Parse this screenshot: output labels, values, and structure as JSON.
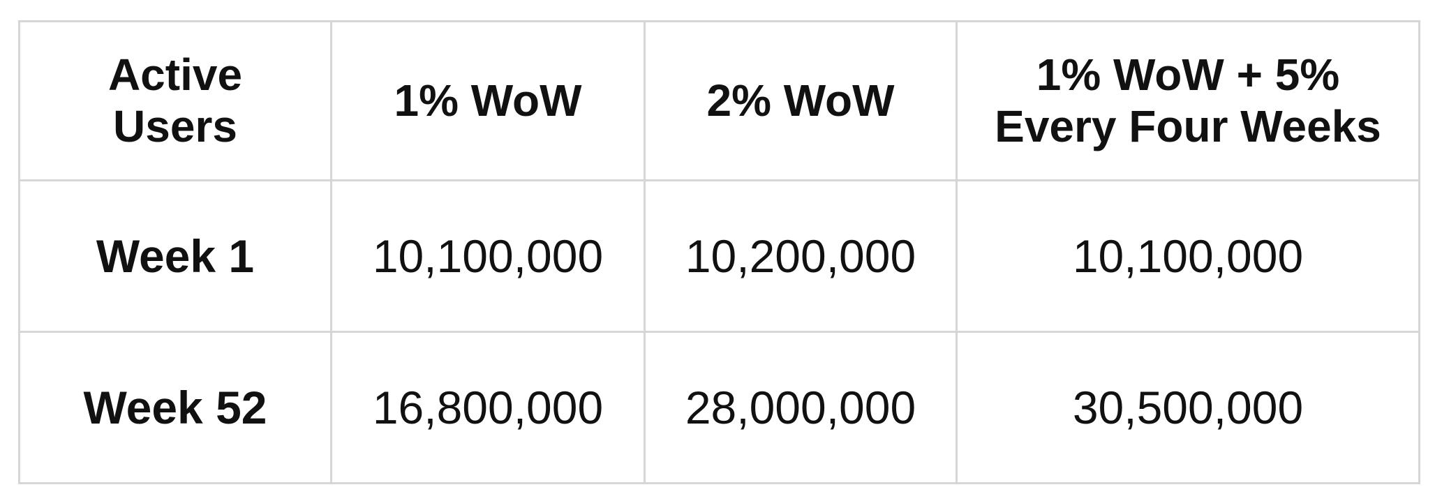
{
  "table": {
    "header": [
      "Active\nUsers",
      "1% WoW",
      "2% WoW",
      "1% WoW + 5%\nEvery Four Weeks"
    ],
    "rows": [
      [
        "Week 1",
        "10,100,000",
        "10,200,000",
        "10,100,000"
      ],
      [
        "Week 52",
        "16,800,000",
        "28,000,000",
        "30,500,000"
      ]
    ]
  }
}
